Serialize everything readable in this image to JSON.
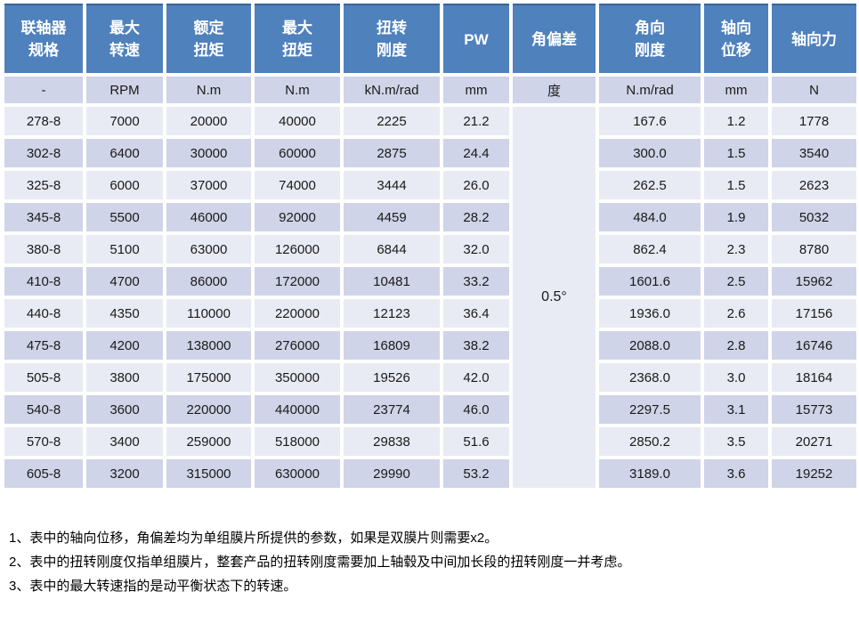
{
  "table": {
    "columns": [
      {
        "label": "联轴器\n规格",
        "unit": "-"
      },
      {
        "label": "最大\n转速",
        "unit": "RPM"
      },
      {
        "label": "额定\n扭矩",
        "unit": "N.m"
      },
      {
        "label": "最大\n扭矩",
        "unit": "N.m"
      },
      {
        "label": "扭转\n刚度",
        "unit": "kN.m/rad"
      },
      {
        "label": "PW",
        "unit": "mm"
      },
      {
        "label": "角偏差",
        "unit": "度"
      },
      {
        "label": "角向\n刚度",
        "unit": "N.m/rad"
      },
      {
        "label": "轴向\n位移",
        "unit": "mm"
      },
      {
        "label": "轴向力",
        "unit": "N"
      }
    ],
    "angular_deviation_value": "0.5°",
    "rows": [
      [
        "278-8",
        "7000",
        "20000",
        "40000",
        "2225",
        "21.2",
        "167.6",
        "1.2",
        "1778"
      ],
      [
        "302-8",
        "6400",
        "30000",
        "60000",
        "2875",
        "24.4",
        "300.0",
        "1.5",
        "3540"
      ],
      [
        "325-8",
        "6000",
        "37000",
        "74000",
        "3444",
        "26.0",
        "262.5",
        "1.5",
        "2623"
      ],
      [
        "345-8",
        "5500",
        "46000",
        "92000",
        "4459",
        "28.2",
        "484.0",
        "1.9",
        "5032"
      ],
      [
        "380-8",
        "5100",
        "63000",
        "126000",
        "6844",
        "32.0",
        "862.4",
        "2.3",
        "8780"
      ],
      [
        "410-8",
        "4700",
        "86000",
        "172000",
        "10481",
        "33.2",
        "1601.6",
        "2.5",
        "15962"
      ],
      [
        "440-8",
        "4350",
        "110000",
        "220000",
        "12123",
        "36.4",
        "1936.0",
        "2.6",
        "17156"
      ],
      [
        "475-8",
        "4200",
        "138000",
        "276000",
        "16809",
        "38.2",
        "2088.0",
        "2.8",
        "16746"
      ],
      [
        "505-8",
        "3800",
        "175000",
        "350000",
        "19526",
        "42.0",
        "2368.0",
        "3.0",
        "18164"
      ],
      [
        "540-8",
        "3600",
        "220000",
        "440000",
        "23774",
        "46.0",
        "2297.5",
        "3.1",
        "15773"
      ],
      [
        "570-8",
        "3400",
        "259000",
        "518000",
        "29838",
        "51.6",
        "2850.2",
        "3.5",
        "20271"
      ],
      [
        "605-8",
        "3200",
        "315000",
        "630000",
        "29990",
        "53.2",
        "3189.0",
        "3.6",
        "19252"
      ]
    ]
  },
  "notes": [
    "1、表中的轴向位移，角偏差均为单组膜片所提供的参数，如果是双膜片则需要x2。",
    "2、表中的扭转刚度仅指单组膜片，整套产品的扭转刚度需要加上轴毂及中间加长段的扭转刚度一并考虑。",
    "3、表中的最大转速指的是动平衡状态下的转速。"
  ],
  "colors": {
    "header_bg": "#4f81bd",
    "header_top_border": "#38659b",
    "band_dark": "#cfd4e8",
    "band_light": "#e9ebf4"
  }
}
